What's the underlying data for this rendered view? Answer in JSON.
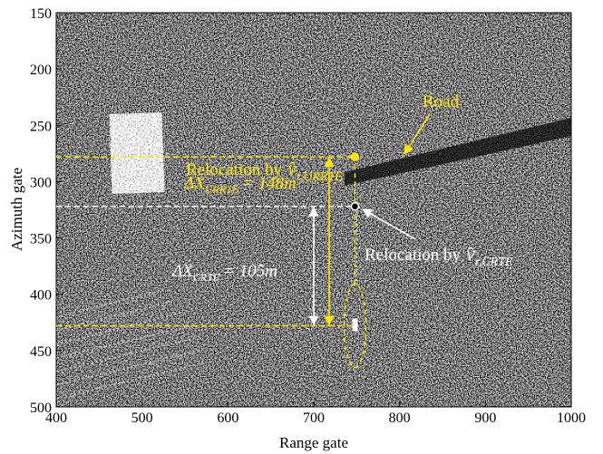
{
  "chart_data": {
    "type": "image",
    "xlabel": "Range gate",
    "ylabel": "Azimuth gate",
    "xlim": [
      400,
      1000
    ],
    "ylim": [
      500,
      150
    ],
    "xticks": [
      400,
      500,
      600,
      700,
      800,
      900,
      1000
    ],
    "yticks": [
      150,
      200,
      250,
      300,
      350,
      400,
      450,
      500
    ],
    "points": [
      {
        "x": 748,
        "y": 278,
        "color": "#ffe600",
        "filled": true
      },
      {
        "x": 748,
        "y": 322,
        "color": "#ffffff",
        "filled": false
      }
    ],
    "hlines": [
      {
        "y": 278,
        "color": "#ffe600"
      },
      {
        "y": 322,
        "color": "#ffffff"
      },
      {
        "y": 428,
        "color": "#ffe600"
      }
    ],
    "measures": [
      {
        "x": 718,
        "y": [
          278,
          428
        ],
        "color": "#ffe600",
        "symbol": "ΔX",
        "subscript": "URRTE",
        "text": "= 148m"
      },
      {
        "x": 700,
        "y": [
          322,
          428
        ],
        "color": "#ffffff",
        "symbol": "ΔX",
        "subscript": "CRTE",
        "text": "= 105m"
      }
    ],
    "labels": [
      {
        "prefix": "Relocation by",
        "symbol": "v̂",
        "subscript": "r,URRTE",
        "color": "#ffe600"
      },
      {
        "prefix": "Relocation by",
        "symbol": "v̂",
        "subscript": "r,CRTE",
        "color": "#ffffff"
      }
    ],
    "road_label": "Road"
  }
}
